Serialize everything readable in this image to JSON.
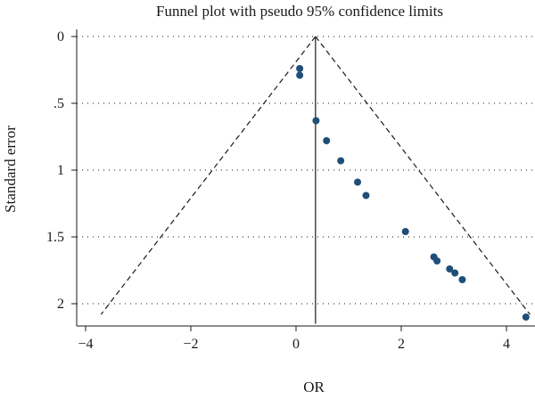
{
  "chart_data": {
    "type": "scatter",
    "title": "Funnel plot with pseudo 95% confidence limits",
    "xlabel": "OR",
    "ylabel": "Standard error",
    "xlim": [
      -4.1,
      4.5
    ],
    "ylim": [
      0,
      2.1
    ],
    "y_reversed": true,
    "xticks": [
      -4,
      -2,
      0,
      2,
      4
    ],
    "xtick_labels": [
      "−4",
      "−2",
      "0",
      "2",
      "4"
    ],
    "yticks": [
      0,
      0.5,
      1,
      1.5,
      2
    ],
    "ytick_labels": [
      "0",
      ".5",
      "1",
      "1.5",
      "2"
    ],
    "grid": "horizontal-dotted",
    "pooled_estimate": 0.37,
    "ci_multiplier": 1.96,
    "points": [
      {
        "x": 0.07,
        "y": 0.24
      },
      {
        "x": 0.07,
        "y": 0.29
      },
      {
        "x": 0.38,
        "y": 0.63
      },
      {
        "x": 0.58,
        "y": 0.78
      },
      {
        "x": 0.85,
        "y": 0.93
      },
      {
        "x": 1.17,
        "y": 1.09
      },
      {
        "x": 1.33,
        "y": 1.19
      },
      {
        "x": 2.08,
        "y": 1.46
      },
      {
        "x": 2.62,
        "y": 1.65
      },
      {
        "x": 2.68,
        "y": 1.68
      },
      {
        "x": 2.92,
        "y": 1.74
      },
      {
        "x": 3.02,
        "y": 1.77
      },
      {
        "x": 3.16,
        "y": 1.82
      },
      {
        "x": 4.37,
        "y": 2.1
      }
    ],
    "colors": {
      "point": "#1f4e79",
      "line": "#1a1a1a"
    }
  }
}
